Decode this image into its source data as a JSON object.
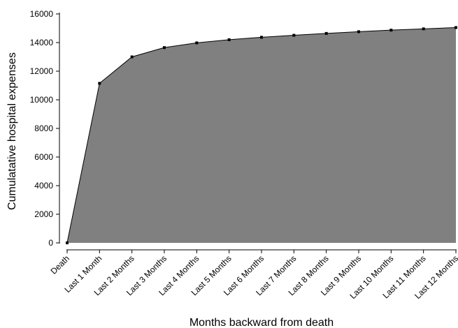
{
  "chart_data": {
    "type": "area",
    "title": "",
    "xlabel": "Months backward from death",
    "ylabel": "Cumulatative hospital expenses",
    "categories": [
      "Death",
      "Last 1 Month",
      "Last 2 Months",
      "Last 3 Months",
      "Last 4 Months",
      "Last 5 Months",
      "Last 6 Months",
      "Last 7 Months",
      "Last 8 Months",
      "Last 9 Months",
      "Last 10 Months",
      "Last 11 Months",
      "Last 12 Months"
    ],
    "values": [
      0,
      11150,
      13000,
      13650,
      13980,
      14200,
      14370,
      14510,
      14640,
      14760,
      14870,
      14960,
      15050
    ],
    "ylim": [
      0,
      16000
    ],
    "yticks": [
      0,
      2000,
      4000,
      6000,
      8000,
      10000,
      12000,
      14000,
      16000
    ],
    "grid": false,
    "colors": {
      "fill": "#808080",
      "line": "#000000",
      "marker": "#000000"
    }
  }
}
